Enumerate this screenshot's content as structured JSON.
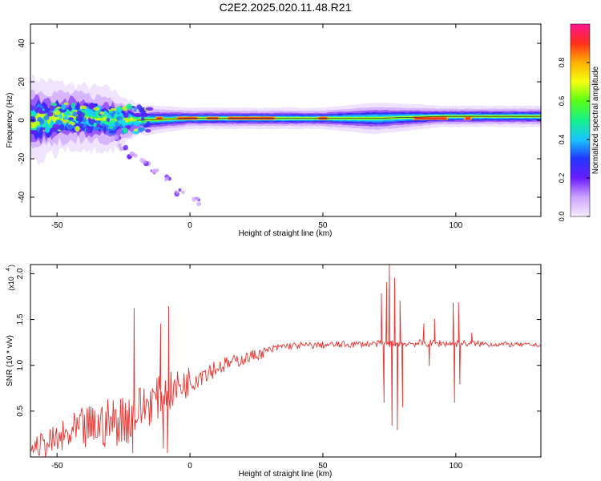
{
  "title": "C2E2.2025.020.11.48.R21",
  "chart_data": [
    {
      "type": "heatmap",
      "xlabel": "Height of straight line (km)",
      "ylabel": "Frequency (Hz)",
      "xlim": [
        -60,
        132
      ],
      "ylim": [
        -50,
        50
      ],
      "xticks": [
        -50,
        0,
        50,
        100
      ],
      "yticks": [
        -40,
        -20,
        0,
        20,
        40
      ],
      "colorbar": {
        "label": "Normalized spectral amplitude",
        "range": [
          0,
          1
        ],
        "ticks": [
          "0.0",
          "0.2",
          "0.4",
          "0.6",
          "0.8"
        ]
      },
      "ridge": [
        {
          "x": -60,
          "center": 0,
          "spread": 8
        },
        {
          "x": -45,
          "center": 2,
          "spread": 6
        },
        {
          "x": -30,
          "center": 0,
          "spread": 6
        },
        {
          "x": -20,
          "center": 0,
          "spread": 3
        },
        {
          "x": 0,
          "center": 1,
          "spread": 2
        },
        {
          "x": 50,
          "center": 1,
          "spread": 2
        },
        {
          "x": 70,
          "center": 1,
          "spread": 3
        },
        {
          "x": 95,
          "center": 2,
          "spread": 2
        },
        {
          "x": 132,
          "center": 2,
          "spread": 2
        }
      ],
      "scatter_tail": [
        {
          "x": -28,
          "y": -10
        },
        {
          "x": -25,
          "y": -14
        },
        {
          "x": -22,
          "y": -18
        },
        {
          "x": -17,
          "y": -22
        },
        {
          "x": -13,
          "y": -26
        },
        {
          "x": -8,
          "y": -30
        },
        {
          "x": -4,
          "y": -37
        },
        {
          "x": 2,
          "y": -42
        }
      ]
    },
    {
      "type": "line",
      "xlabel": "Height of straight line (km)",
      "ylabel": "SNR (10 * v/v)",
      "yscale_note": "(x10",
      "yscale_exp": "4",
      "xlim": [
        -60,
        132
      ],
      "ylim": [
        0,
        2.1
      ],
      "xticks": [
        -50,
        0,
        50,
        100
      ],
      "yticks": [
        "0.5",
        "1.0",
        "1.5",
        "2.0"
      ],
      "color": "#e8322f",
      "series": [
        {
          "envelope": [
            {
              "x": -60,
              "low": 0.0,
              "high": 0.2
            },
            {
              "x": -50,
              "low": 0.0,
              "high": 0.35
            },
            {
              "x": -40,
              "low": 0.05,
              "high": 0.55
            },
            {
              "x": -30,
              "low": 0.1,
              "high": 0.65
            },
            {
              "x": -22,
              "low": 0.15,
              "high": 0.75
            },
            {
              "x": -15,
              "low": 0.35,
              "high": 0.85
            },
            {
              "x": -5,
              "low": 0.55,
              "high": 0.95
            },
            {
              "x": 5,
              "low": 0.8,
              "high": 1.05
            },
            {
              "x": 15,
              "low": 0.95,
              "high": 1.1
            },
            {
              "x": 25,
              "low": 1.05,
              "high": 1.18
            },
            {
              "x": 35,
              "low": 1.17,
              "high": 1.25
            },
            {
              "x": 70,
              "low": 1.2,
              "high": 1.27
            },
            {
              "x": 85,
              "low": 1.2,
              "high": 1.28
            },
            {
              "x": 100,
              "low": 1.2,
              "high": 1.28
            },
            {
              "x": 132,
              "low": 1.2,
              "high": 1.24
            }
          ],
          "spikes": [
            {
              "x": -21,
              "y": 1.62
            },
            {
              "x": -21.5,
              "y": 0.05
            },
            {
              "x": -8,
              "y": 1.64
            },
            {
              "x": -11,
              "y": 1.45
            },
            {
              "x": -8.5,
              "y": 0.05
            },
            {
              "x": -10,
              "y": 0.1
            },
            {
              "x": 72,
              "y": 1.78
            },
            {
              "x": 73,
              "y": 0.6
            },
            {
              "x": 74,
              "y": 1.9
            },
            {
              "x": 75,
              "y": 2.1
            },
            {
              "x": 76,
              "y": 0.35
            },
            {
              "x": 77,
              "y": 1.95
            },
            {
              "x": 78,
              "y": 0.3
            },
            {
              "x": 79,
              "y": 1.7
            },
            {
              "x": 80,
              "y": 0.55
            },
            {
              "x": 88,
              "y": 1.45
            },
            {
              "x": 90,
              "y": 1.0
            },
            {
              "x": 92,
              "y": 1.5
            },
            {
              "x": 99,
              "y": 1.68
            },
            {
              "x": 99.5,
              "y": 0.6
            },
            {
              "x": 101,
              "y": 1.68
            },
            {
              "x": 101.5,
              "y": 0.8
            },
            {
              "x": 106,
              "y": 1.35
            }
          ]
        }
      ]
    }
  ]
}
